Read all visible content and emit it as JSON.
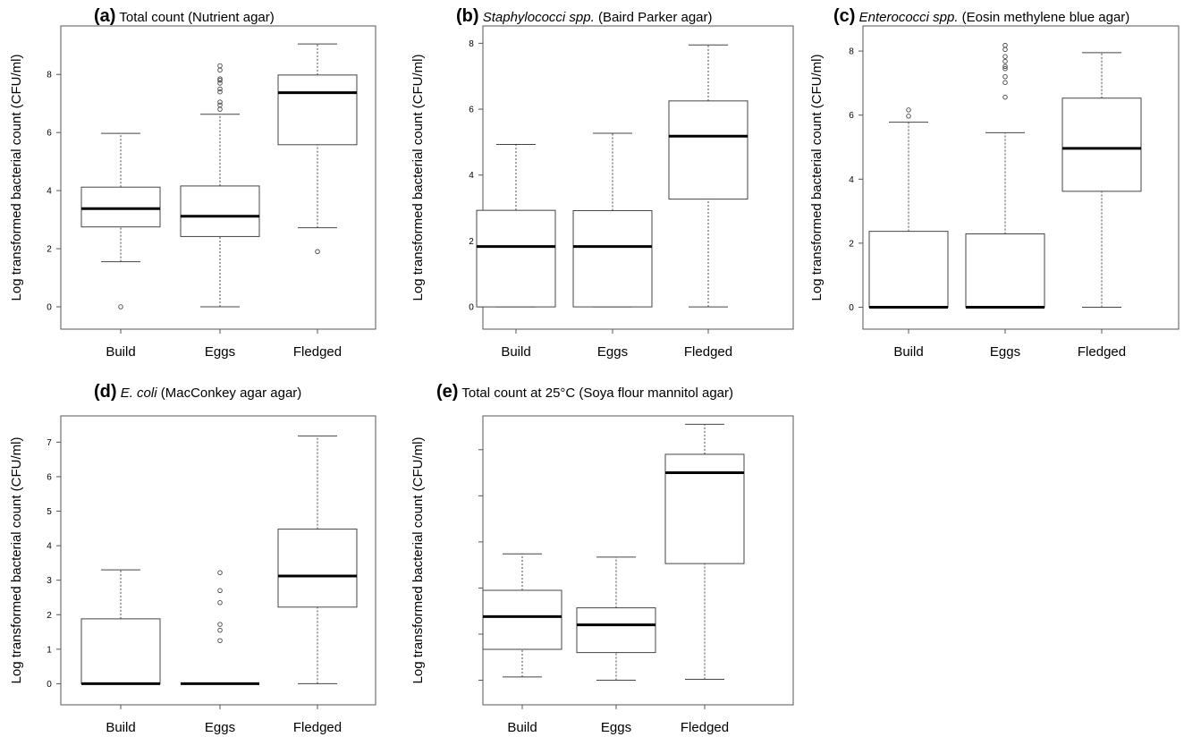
{
  "chart_data": [
    {
      "type": "boxplot",
      "panel": "(a)",
      "title_parts": [
        {
          "text": "Total count (Nutrient agar)",
          "italic": false
        }
      ],
      "ylabel": "Log transformed bacterial count (CFU/ml)",
      "categories": [
        "Build",
        "Eggs",
        "Fledged"
      ],
      "ylim": [
        -0.4,
        9.3
      ],
      "yticks": [
        0,
        2,
        4,
        6,
        8
      ],
      "show_ytick_labels": true,
      "boxes": [
        {
          "whisker_low": 1.55,
          "q1": 2.75,
          "median": 3.38,
          "q3": 4.12,
          "whisker_high": 5.97,
          "outliers": [
            0.0
          ]
        },
        {
          "whisker_low": 0.0,
          "q1": 2.42,
          "median": 3.12,
          "q3": 4.16,
          "whisker_high": 6.63,
          "outliers": [
            6.8,
            6.95,
            7.05,
            7.4,
            7.5,
            7.7,
            7.8,
            7.85,
            8.15,
            8.3
          ]
        },
        {
          "whisker_low": 2.72,
          "q1": 5.58,
          "median": 7.37,
          "q3": 7.98,
          "whisker_high": 9.05,
          "outliers": [
            1.9
          ]
        }
      ]
    },
    {
      "type": "boxplot",
      "panel": "(b)",
      "title_parts": [
        {
          "text": "Staphylococci spp.",
          "italic": true
        },
        {
          "text": " (Baird Parker agar)",
          "italic": false
        }
      ],
      "ylabel": "Log transformed bacterial count (CFU/ml)",
      "categories": [
        "Build",
        "Eggs",
        "Fledged"
      ],
      "ylim": [
        -0.35,
        8.2
      ],
      "yticks": [
        0,
        2,
        4,
        6,
        8
      ],
      "show_ytick_labels": true,
      "boxes": [
        {
          "whisker_low": 0.0,
          "q1": 0.0,
          "median": 1.83,
          "q3": 2.93,
          "whisker_high": 4.93,
          "outliers": []
        },
        {
          "whisker_low": 0.0,
          "q1": 0.0,
          "median": 1.83,
          "q3": 2.92,
          "whisker_high": 5.27,
          "outliers": []
        },
        {
          "whisker_low": 0.0,
          "q1": 3.27,
          "median": 5.18,
          "q3": 6.25,
          "whisker_high": 7.95,
          "outliers": []
        }
      ]
    },
    {
      "type": "boxplot",
      "panel": "(c)",
      "title_parts": [
        {
          "text": "Enterococci spp.",
          "italic": true
        },
        {
          "text": "  (Eosin methylene blue agar)",
          "italic": false
        }
      ],
      "ylabel": "Log transformed bacterial count (CFU/ml)",
      "categories": [
        "Build",
        "Eggs",
        "Fledged"
      ],
      "ylim": [
        -0.35,
        8.45
      ],
      "yticks": [
        0,
        2,
        4,
        6,
        8
      ],
      "show_ytick_labels": true,
      "boxes": [
        {
          "whisker_low": 0.0,
          "q1": 0.0,
          "median": 0.0,
          "q3": 2.37,
          "whisker_high": 5.78,
          "outliers": [
            5.97,
            6.16
          ]
        },
        {
          "whisker_low": 0.0,
          "q1": 0.0,
          "median": 0.0,
          "q3": 2.29,
          "whisker_high": 5.45,
          "outliers": [
            6.56,
            7.02,
            7.2,
            7.45,
            7.52,
            7.68,
            7.83,
            8.05,
            8.18
          ]
        },
        {
          "whisker_low": 0.0,
          "q1": 3.62,
          "median": 4.96,
          "q3": 6.53,
          "whisker_high": 7.95,
          "outliers": []
        }
      ]
    },
    {
      "type": "boxplot",
      "panel": "(d)",
      "title_parts": [
        {
          "text": "E. coli",
          "italic": true
        },
        {
          "text": " (MacConkey agar agar)",
          "italic": false
        }
      ],
      "ylabel": "Log transformed bacterial count (CFU/ml)",
      "categories": [
        "Build",
        "Eggs",
        "Fledged"
      ],
      "ylim": [
        -0.3,
        7.45
      ],
      "yticks": [
        0,
        1,
        2,
        3,
        4,
        5,
        6,
        7
      ],
      "show_ytick_labels": true,
      "boxes": [
        {
          "whisker_low": 0.0,
          "q1": 0.0,
          "median": 0.0,
          "q3": 1.88,
          "whisker_high": 3.3,
          "outliers": []
        },
        {
          "whisker_low": 0.0,
          "q1": 0.0,
          "median": 0.0,
          "q3": 0.0,
          "whisker_high": 0.0,
          "outliers": [
            1.25,
            1.55,
            1.72,
            2.35,
            2.7,
            3.22
          ]
        },
        {
          "whisker_low": 0.0,
          "q1": 2.22,
          "median": 3.12,
          "q3": 4.48,
          "whisker_high": 7.18,
          "outliers": []
        }
      ]
    },
    {
      "type": "boxplot",
      "panel": "(e)",
      "title_parts": [
        {
          "text": "Total count at 25°C (Soya flour mannitol agar)",
          "italic": false
        }
      ],
      "ylabel": "Log transformed bacterial count (CFU/ml)",
      "categories": [
        "Build",
        "Eggs",
        "Fledged"
      ],
      "ylim": [
        -0.3,
        5.5
      ],
      "yticks": [
        0,
        1,
        2,
        3,
        4,
        5
      ],
      "show_ytick_labels": false,
      "boxes": [
        {
          "whisker_low": 0.07,
          "q1": 0.67,
          "median": 1.38,
          "q3": 1.95,
          "whisker_high": 2.74,
          "outliers": []
        },
        {
          "whisker_low": 0.0,
          "q1": 0.6,
          "median": 1.2,
          "q3": 1.57,
          "whisker_high": 2.67,
          "outliers": []
        },
        {
          "whisker_low": 0.02,
          "q1": 2.53,
          "median": 4.5,
          "q3": 4.9,
          "whisker_high": 5.55,
          "outliers": []
        }
      ]
    }
  ]
}
